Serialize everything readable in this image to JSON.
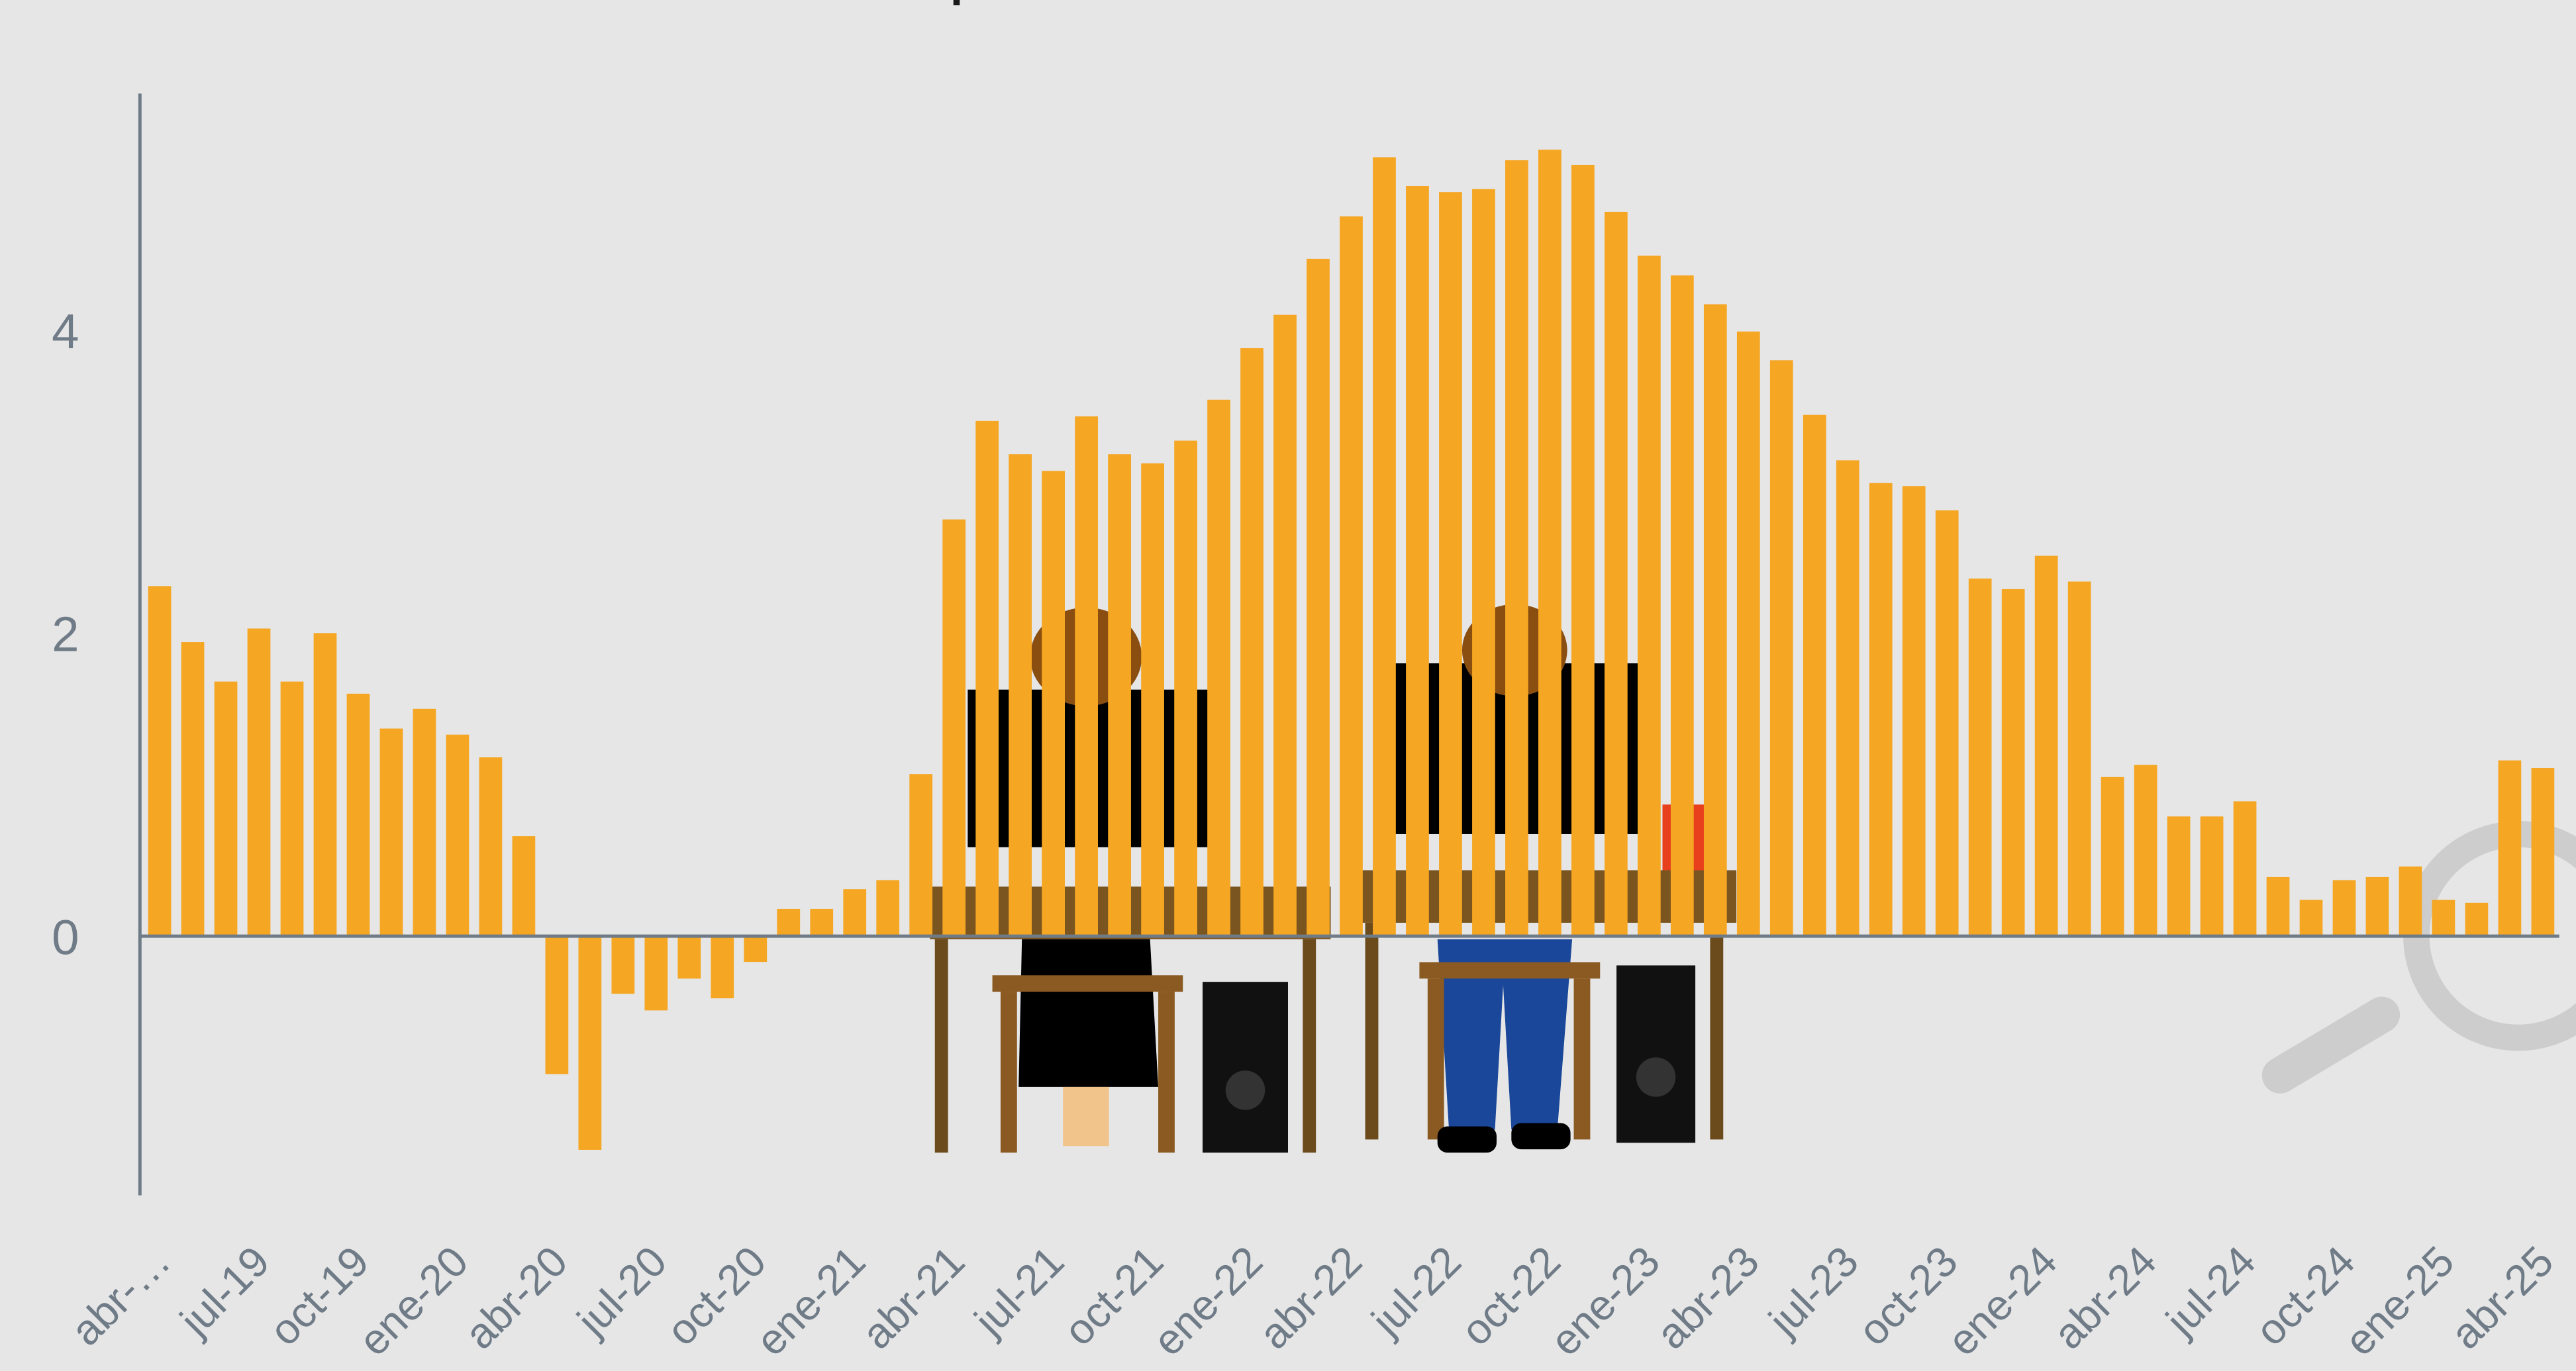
{
  "chart_data": {
    "type": "bar",
    "title": "Los empleos de la nueva revolución",
    "categories": [
      "abr-…",
      null,
      null,
      "jul-19",
      null,
      null,
      "oct-19",
      null,
      null,
      "ene-20",
      null,
      null,
      "abr-20",
      null,
      null,
      "jul-20",
      null,
      null,
      "oct-20",
      null,
      null,
      "ene-21",
      null,
      null,
      "abr-21",
      null,
      null,
      "jul-21",
      null,
      null,
      "oct-21",
      null,
      null,
      "ene-22",
      null,
      null,
      "abr-22",
      null,
      null,
      "jul-22",
      null,
      null,
      "oct-22",
      null,
      null,
      "ene-23",
      null,
      null,
      "abr-23",
      null,
      null,
      "jul-23",
      null,
      null,
      "oct-23",
      null,
      null,
      "ene-24",
      null,
      null,
      "abr-24",
      null,
      null,
      "jul-24",
      null,
      null,
      "oct-24",
      null,
      null,
      "ene-25",
      null,
      null,
      "abr-25"
    ],
    "values": [
      2.31,
      1.94,
      1.68,
      2.03,
      1.68,
      2.0,
      1.6,
      1.37,
      1.5,
      1.33,
      1.18,
      0.66,
      -0.91,
      -1.41,
      -0.38,
      -0.49,
      -0.28,
      -0.41,
      -0.17,
      0.18,
      0.18,
      0.31,
      0.37,
      1.07,
      2.75,
      3.4,
      3.18,
      3.07,
      3.43,
      3.18,
      3.12,
      3.27,
      3.54,
      3.88,
      4.1,
      4.47,
      4.75,
      5.14,
      4.95,
      4.91,
      4.93,
      5.12,
      5.19,
      5.09,
      4.78,
      4.49,
      4.36,
      4.17,
      3.99,
      3.8,
      3.44,
      3.14,
      2.99,
      2.97,
      2.81,
      2.36,
      2.29,
      2.51,
      2.34,
      1.05,
      1.13,
      0.79,
      0.79,
      0.89,
      0.39,
      0.24,
      0.37,
      0.39,
      0.46,
      0.24,
      0.22,
      1.16,
      1.11
    ],
    "color": "#f5a623",
    "ylim": [
      -1.71,
      5.56
    ],
    "yticks": [
      0,
      2,
      4
    ],
    "grid": false
  }
}
